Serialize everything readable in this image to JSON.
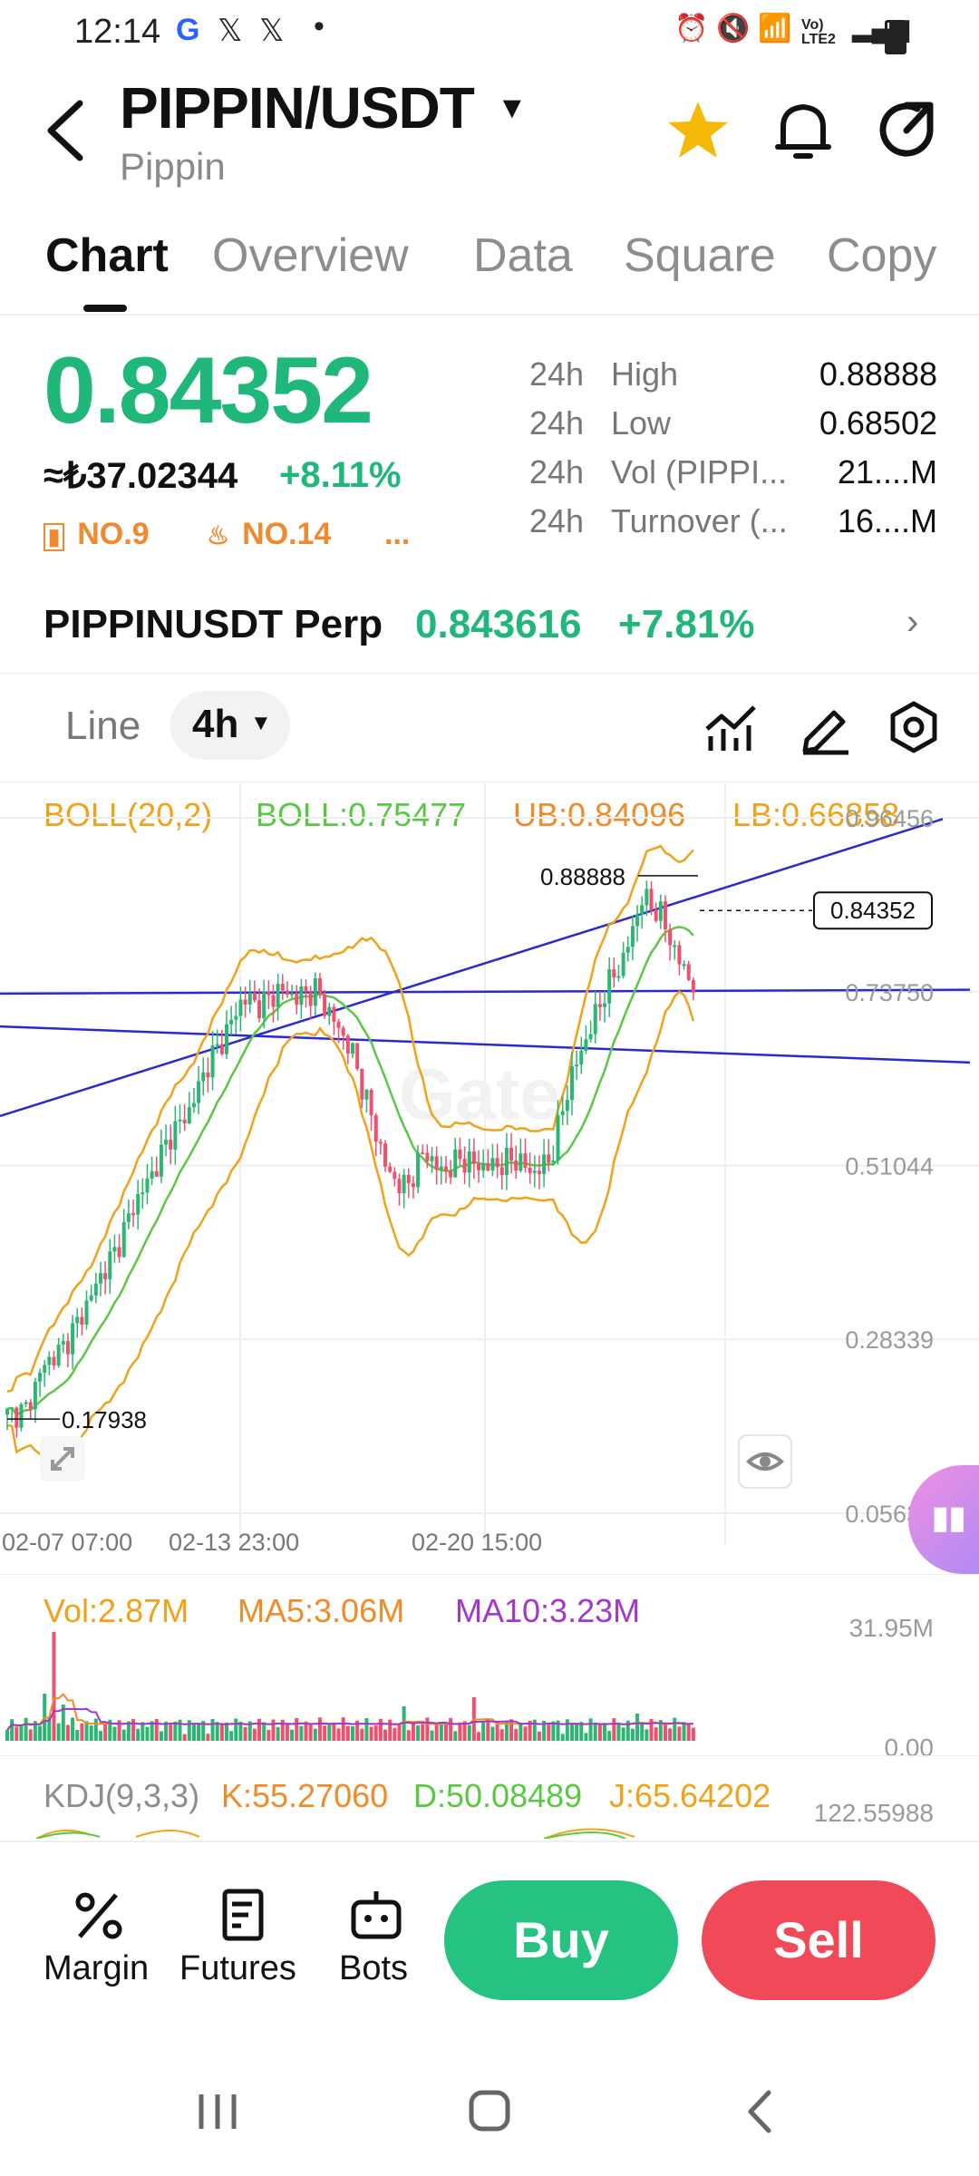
{
  "status_bar": {
    "time": "12:14",
    "network": "Vo) LTE2"
  },
  "header": {
    "pair": "PIPPIN/USDT",
    "coin_name": "Pippin"
  },
  "tabs": [
    "Chart",
    "Overview",
    "Data",
    "Square",
    "Copy"
  ],
  "price": {
    "last": "0.84352",
    "fiat": "≈₺37.02344",
    "change": "+8.11%",
    "rank1": "NO.9",
    "rank2": "NO.14",
    "more": "..."
  },
  "stats": [
    {
      "prefix": "24h",
      "label": "High",
      "value": "0.88888"
    },
    {
      "prefix": "24h",
      "label": "Low",
      "value": "0.68502"
    },
    {
      "prefix": "24h",
      "label": "Vol (PIPPI...",
      "value": "21....M"
    },
    {
      "prefix": "24h",
      "label": "Turnover (...",
      "value": "16....M"
    }
  ],
  "perp": {
    "name": "PIPPINUSDT Perp",
    "price": "0.843616",
    "change": "+7.81%"
  },
  "chart_toolbar": {
    "type": "Line",
    "timeframe": "4h"
  },
  "indicators": {
    "boll_name": "BOLL(20,2)",
    "boll_mid": "BOLL:0.75477",
    "boll_ub": "UB:0.84096",
    "boll_lb": "LB:0.66858"
  },
  "chart_data": {
    "type": "candlestick",
    "y_axis_labels": [
      "0.96456",
      "0.73750",
      "0.51044",
      "0.28339",
      "0.05633"
    ],
    "x_axis_labels": [
      "02-07 07:00",
      "02-13 23:00",
      "02-20 15:00"
    ],
    "high_label": "0.88888",
    "low_label": "0.17938",
    "current_label": "0.84352",
    "watermark": "Gate",
    "colors": {
      "up": "#2bb673",
      "down": "#f0506e",
      "boll_upper": "#f0a21a",
      "boll_mid": "#5bc845",
      "trendline": "#2a2acf"
    }
  },
  "volume": {
    "vol": "Vol:2.87M",
    "ma5": "MA5:3.06M",
    "ma10": "MA10:3.23M",
    "axis_top": "31.95M",
    "axis_bottom": "0.00"
  },
  "kdj": {
    "name": "KDJ(9,3,3)",
    "k": "K:55.27060",
    "d": "D:50.08489",
    "j": "J:65.64202",
    "axis_top": "122.55988"
  },
  "bottom_bar": {
    "margin": "Margin",
    "futures": "Futures",
    "bots": "Bots",
    "buy": "Buy",
    "sell": "Sell"
  }
}
